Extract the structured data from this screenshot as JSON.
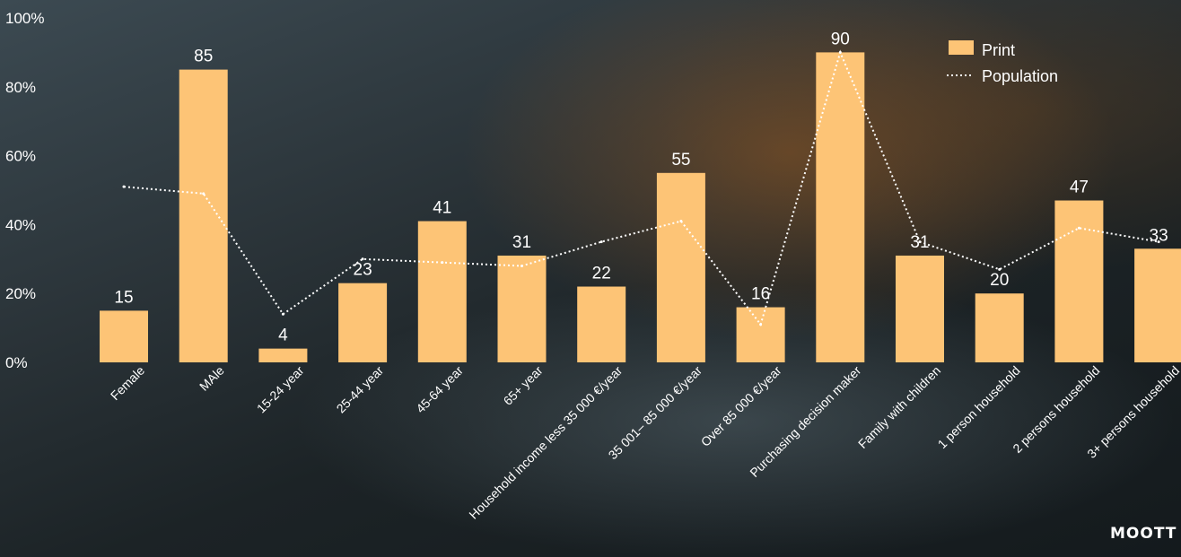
{
  "brand": "MOOTT",
  "chart_data": {
    "type": "bar",
    "categories": [
      "Female",
      "MAle",
      "15-24 year",
      "25-44 year",
      "45-64 year",
      "65+ year",
      "Household income less 35 000 €/year",
      "35 001– 85 000 €/year",
      "Over 85 000 €/year",
      "Purchasing decision maker",
      "Family with children",
      "1 person household",
      "2 persons household",
      "3+ persons household"
    ],
    "series": [
      {
        "name": "Print",
        "type": "bar",
        "values": [
          15,
          85,
          4,
          23,
          41,
          31,
          22,
          55,
          16,
          90,
          31,
          20,
          47,
          33
        ],
        "value_labels": [
          "15",
          "85",
          "4",
          "23",
          "41",
          "31",
          "22",
          "55",
          "16",
          "90",
          "31",
          "20",
          "47",
          "33"
        ]
      },
      {
        "name": "Population",
        "type": "line",
        "style": "dotted",
        "values": [
          51,
          49,
          14,
          30,
          29,
          28,
          35,
          41,
          11,
          90,
          35,
          27,
          39,
          35
        ]
      }
    ],
    "yticks": [
      "0%",
      "20%",
      "40%",
      "60%",
      "80%",
      "100%"
    ],
    "ylim": [
      0,
      100
    ],
    "legend": {
      "position": "top-right",
      "entries": [
        "Print",
        "Population"
      ]
    },
    "colors": {
      "bar": "#fdc476",
      "line": "#ffffff"
    },
    "grid": false
  }
}
